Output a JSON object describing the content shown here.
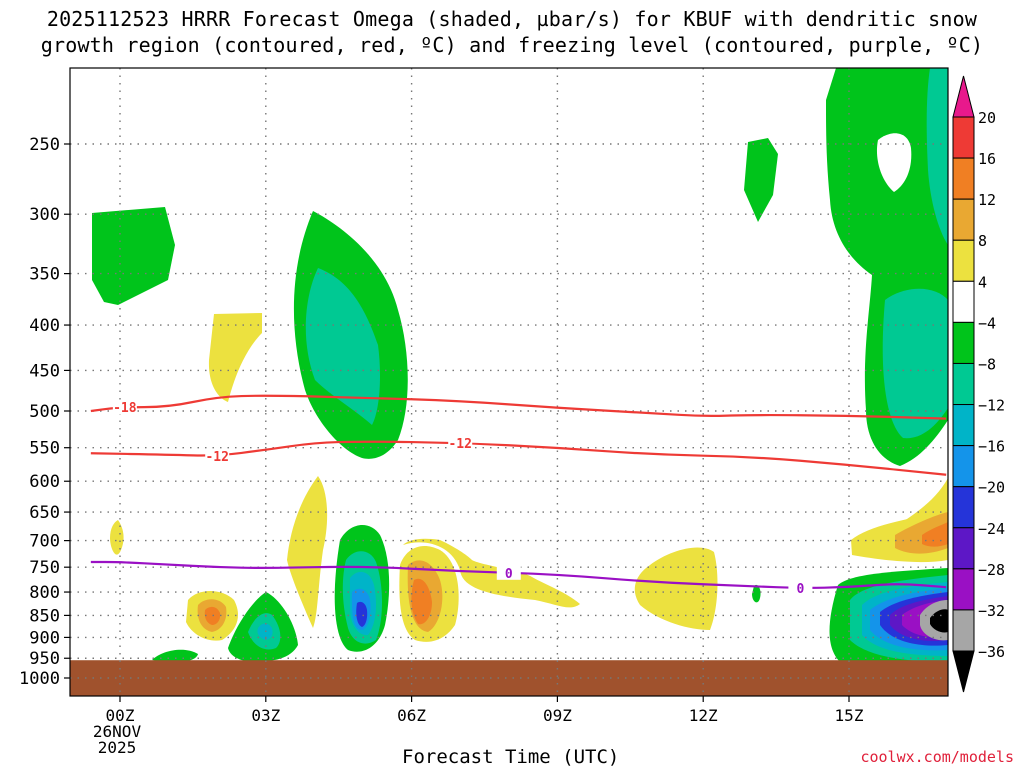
{
  "title": {
    "line1": "2025112523 HRRR Forecast Omega (shaded, µbar/s) for KBUF with dendritic snow",
    "line2": "growth region (contoured, red, ºC) and freezing level (contoured, purple, ºC)"
  },
  "footer": {
    "credit": "coolwx.com/models"
  },
  "chart_data": {
    "type": "heatmap",
    "title": "2025112523 HRRR Forecast Omega (shaded, µbar/s) for KBUF with dendritic snow growth region (contoured, red, ºC) and freezing level (contoured, purple, ºC)",
    "xlabel": "Forecast Time (UTC)",
    "ylabel": "",
    "x_ticks": [
      "00Z",
      "03Z",
      "06Z",
      "09Z",
      "12Z",
      "15Z"
    ],
    "x_tick_hours": [
      0,
      3,
      6,
      9,
      12,
      15
    ],
    "x_sub_labels": [
      "26NOV",
      "2025"
    ],
    "xlim": [
      -0.6,
      17
    ],
    "y_ticks": [
      250,
      300,
      350,
      400,
      450,
      500,
      550,
      600,
      650,
      700,
      750,
      800,
      850,
      900,
      950,
      1000
    ],
    "ylim_hPa": [
      200,
      1016
    ],
    "y_scale": "log",
    "colorbar": {
      "levels": [
        20,
        16,
        12,
        8,
        4,
        -4,
        -8,
        -12,
        -16,
        -20,
        -24,
        -28,
        -32,
        -36
      ],
      "colors": {
        "above_20": "#e8198c",
        "16_20": "#ee3a35",
        "12_16": "#f07f23",
        "8_12": "#e9a832",
        "4_8": "#ece13f",
        "-4_4": "#ffffff",
        "-8_-4": "#00c41b",
        "-12_-8": "#00c993",
        "-16_-12": "#00b4c8",
        "-20_-16": "#1494ea",
        "-24_-20": "#2534d9",
        "-28_-24": "#5d17c6",
        "-32_-28": "#9a10c4",
        "-36_-32": "#a6a6a6",
        "below_-36": "#000000"
      }
    },
    "contours": [
      {
        "name": "-18 C isotherm",
        "color": "#ee3a35",
        "label": "-18",
        "hours": [
          -0.6,
          0,
          1,
          2,
          3,
          5,
          7,
          9,
          11,
          12,
          13,
          15,
          17
        ],
        "pressure": [
          500,
          495,
          495,
          482,
          480,
          483,
          487,
          496,
          503,
          507,
          505,
          506,
          510
        ]
      },
      {
        "name": "-12 C isotherm",
        "color": "#ee3a35",
        "label": "-12",
        "hours": [
          -0.6,
          1,
          2,
          3,
          4,
          5,
          7,
          9,
          11,
          13,
          15,
          17
        ],
        "pressure": [
          558,
          560,
          562,
          553,
          543,
          541,
          543,
          550,
          560,
          563,
          575,
          590
        ]
      },
      {
        "name": "0 C freezing level",
        "color": "#9a10c4",
        "label": "0",
        "hours": [
          -0.6,
          0,
          1,
          2,
          3,
          5,
          7,
          9,
          11,
          13,
          14,
          15,
          16,
          17
        ],
        "pressure": [
          740,
          740,
          745,
          750,
          752,
          748,
          758,
          764,
          780,
          788,
          792,
          790,
          782,
          790
        ]
      }
    ],
    "surface_pressure_hPa": 980
  }
}
